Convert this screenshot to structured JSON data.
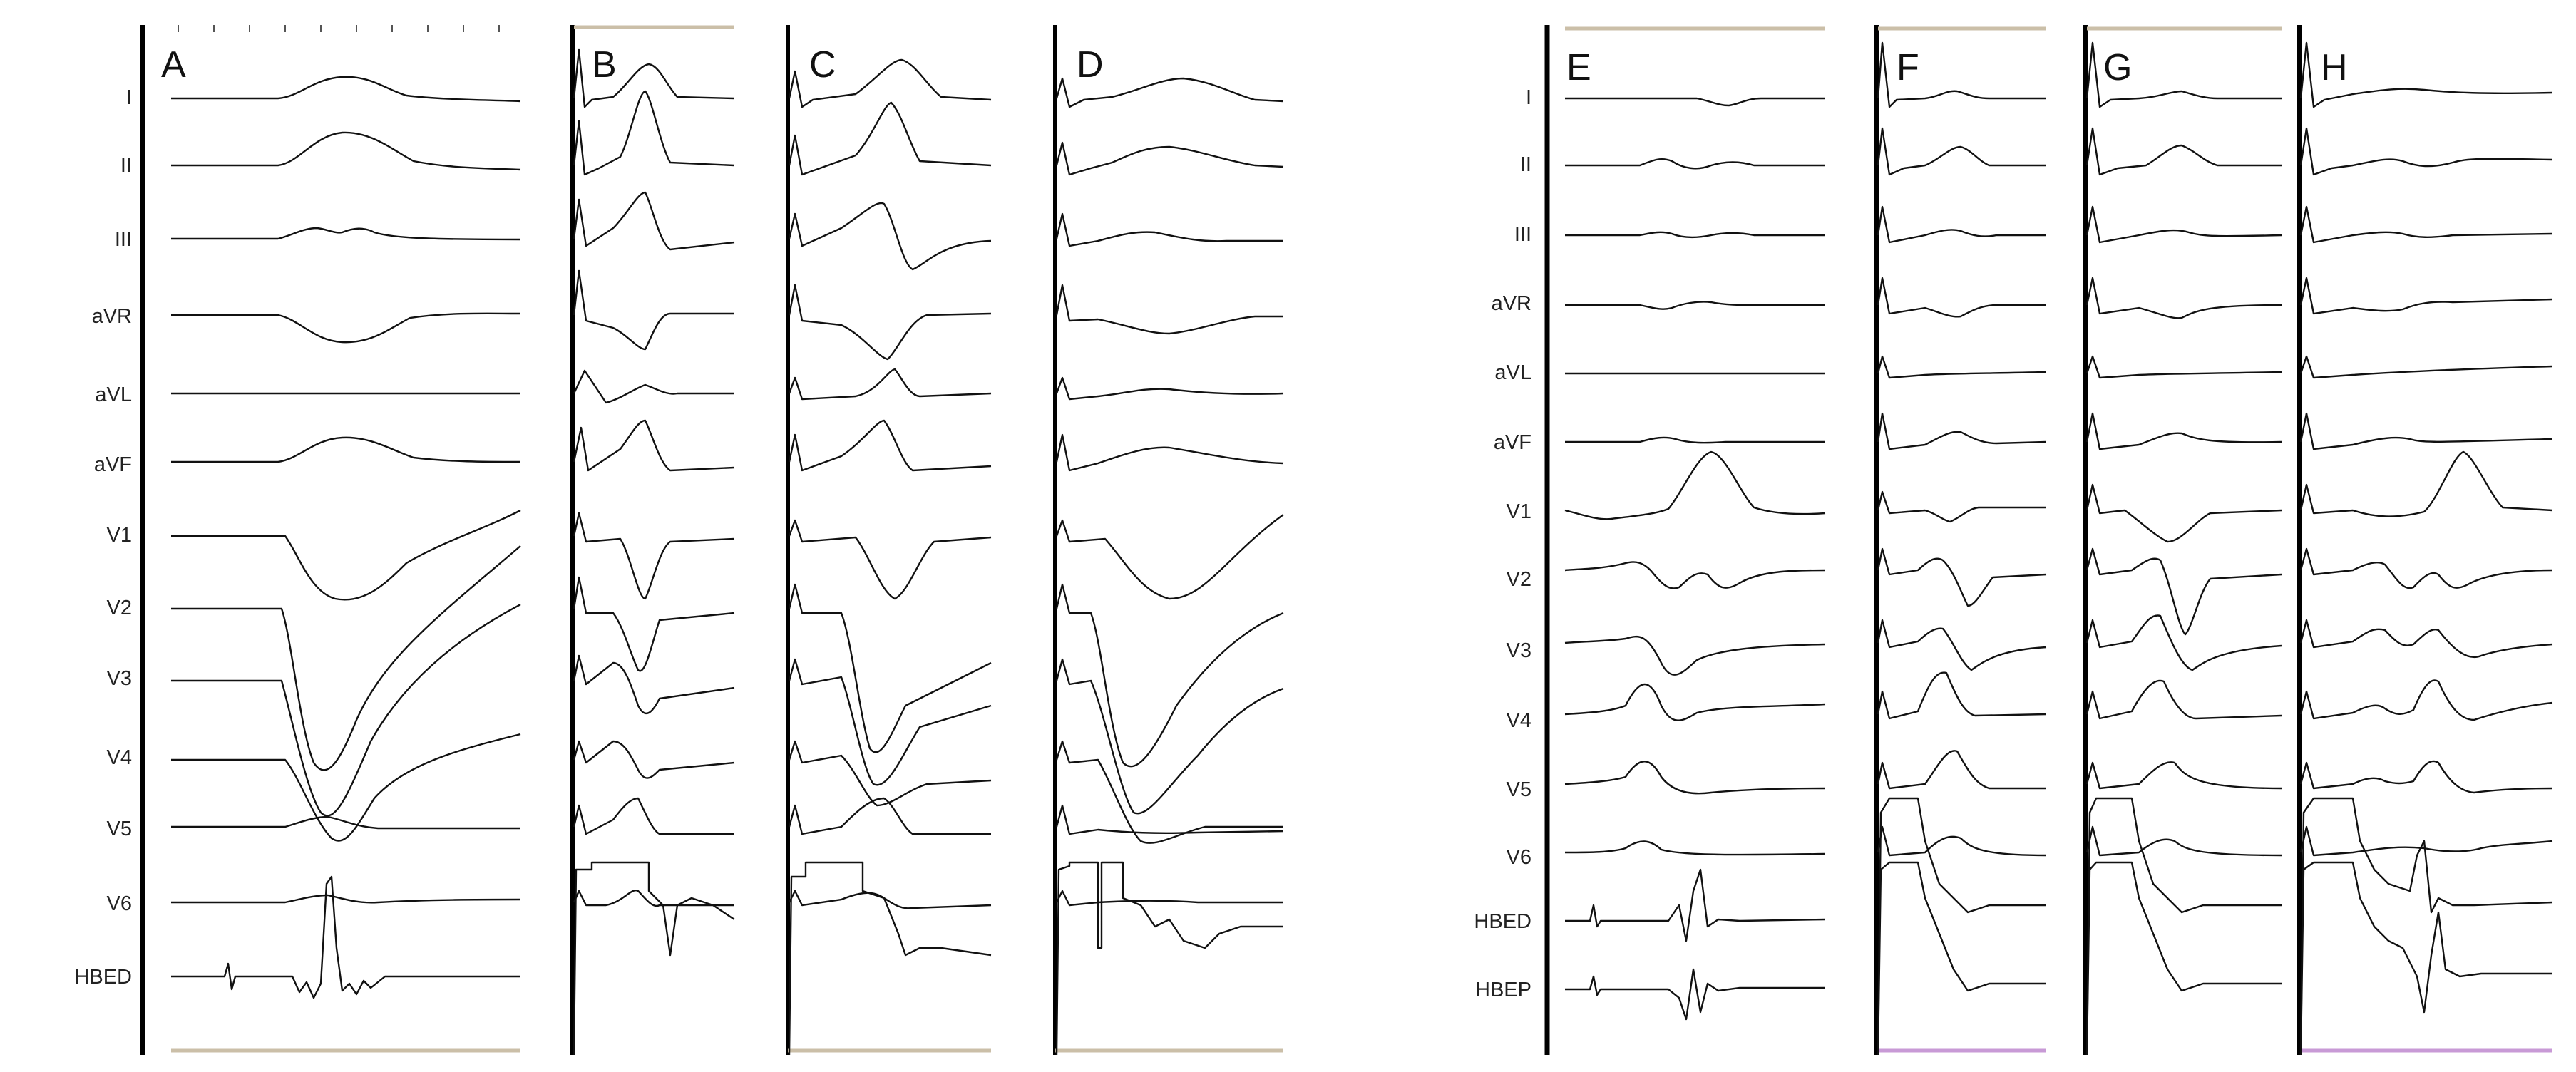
{
  "figure": {
    "groups": [
      {
        "leads": [
          "I",
          "II",
          "III",
          "aVR",
          "aVL",
          "aVF",
          "V1",
          "V2",
          "V3",
          "V4",
          "V5",
          "V6",
          "HBED"
        ],
        "panels": [
          "A",
          "B",
          "C",
          "D"
        ]
      },
      {
        "leads": [
          "I",
          "II",
          "III",
          "aVR",
          "aVL",
          "aVF",
          "V1",
          "V2",
          "V3",
          "V4",
          "V5",
          "V6",
          "HBED",
          "HBEP"
        ],
        "panels": [
          "E",
          "F",
          "G",
          "H"
        ]
      }
    ]
  }
}
